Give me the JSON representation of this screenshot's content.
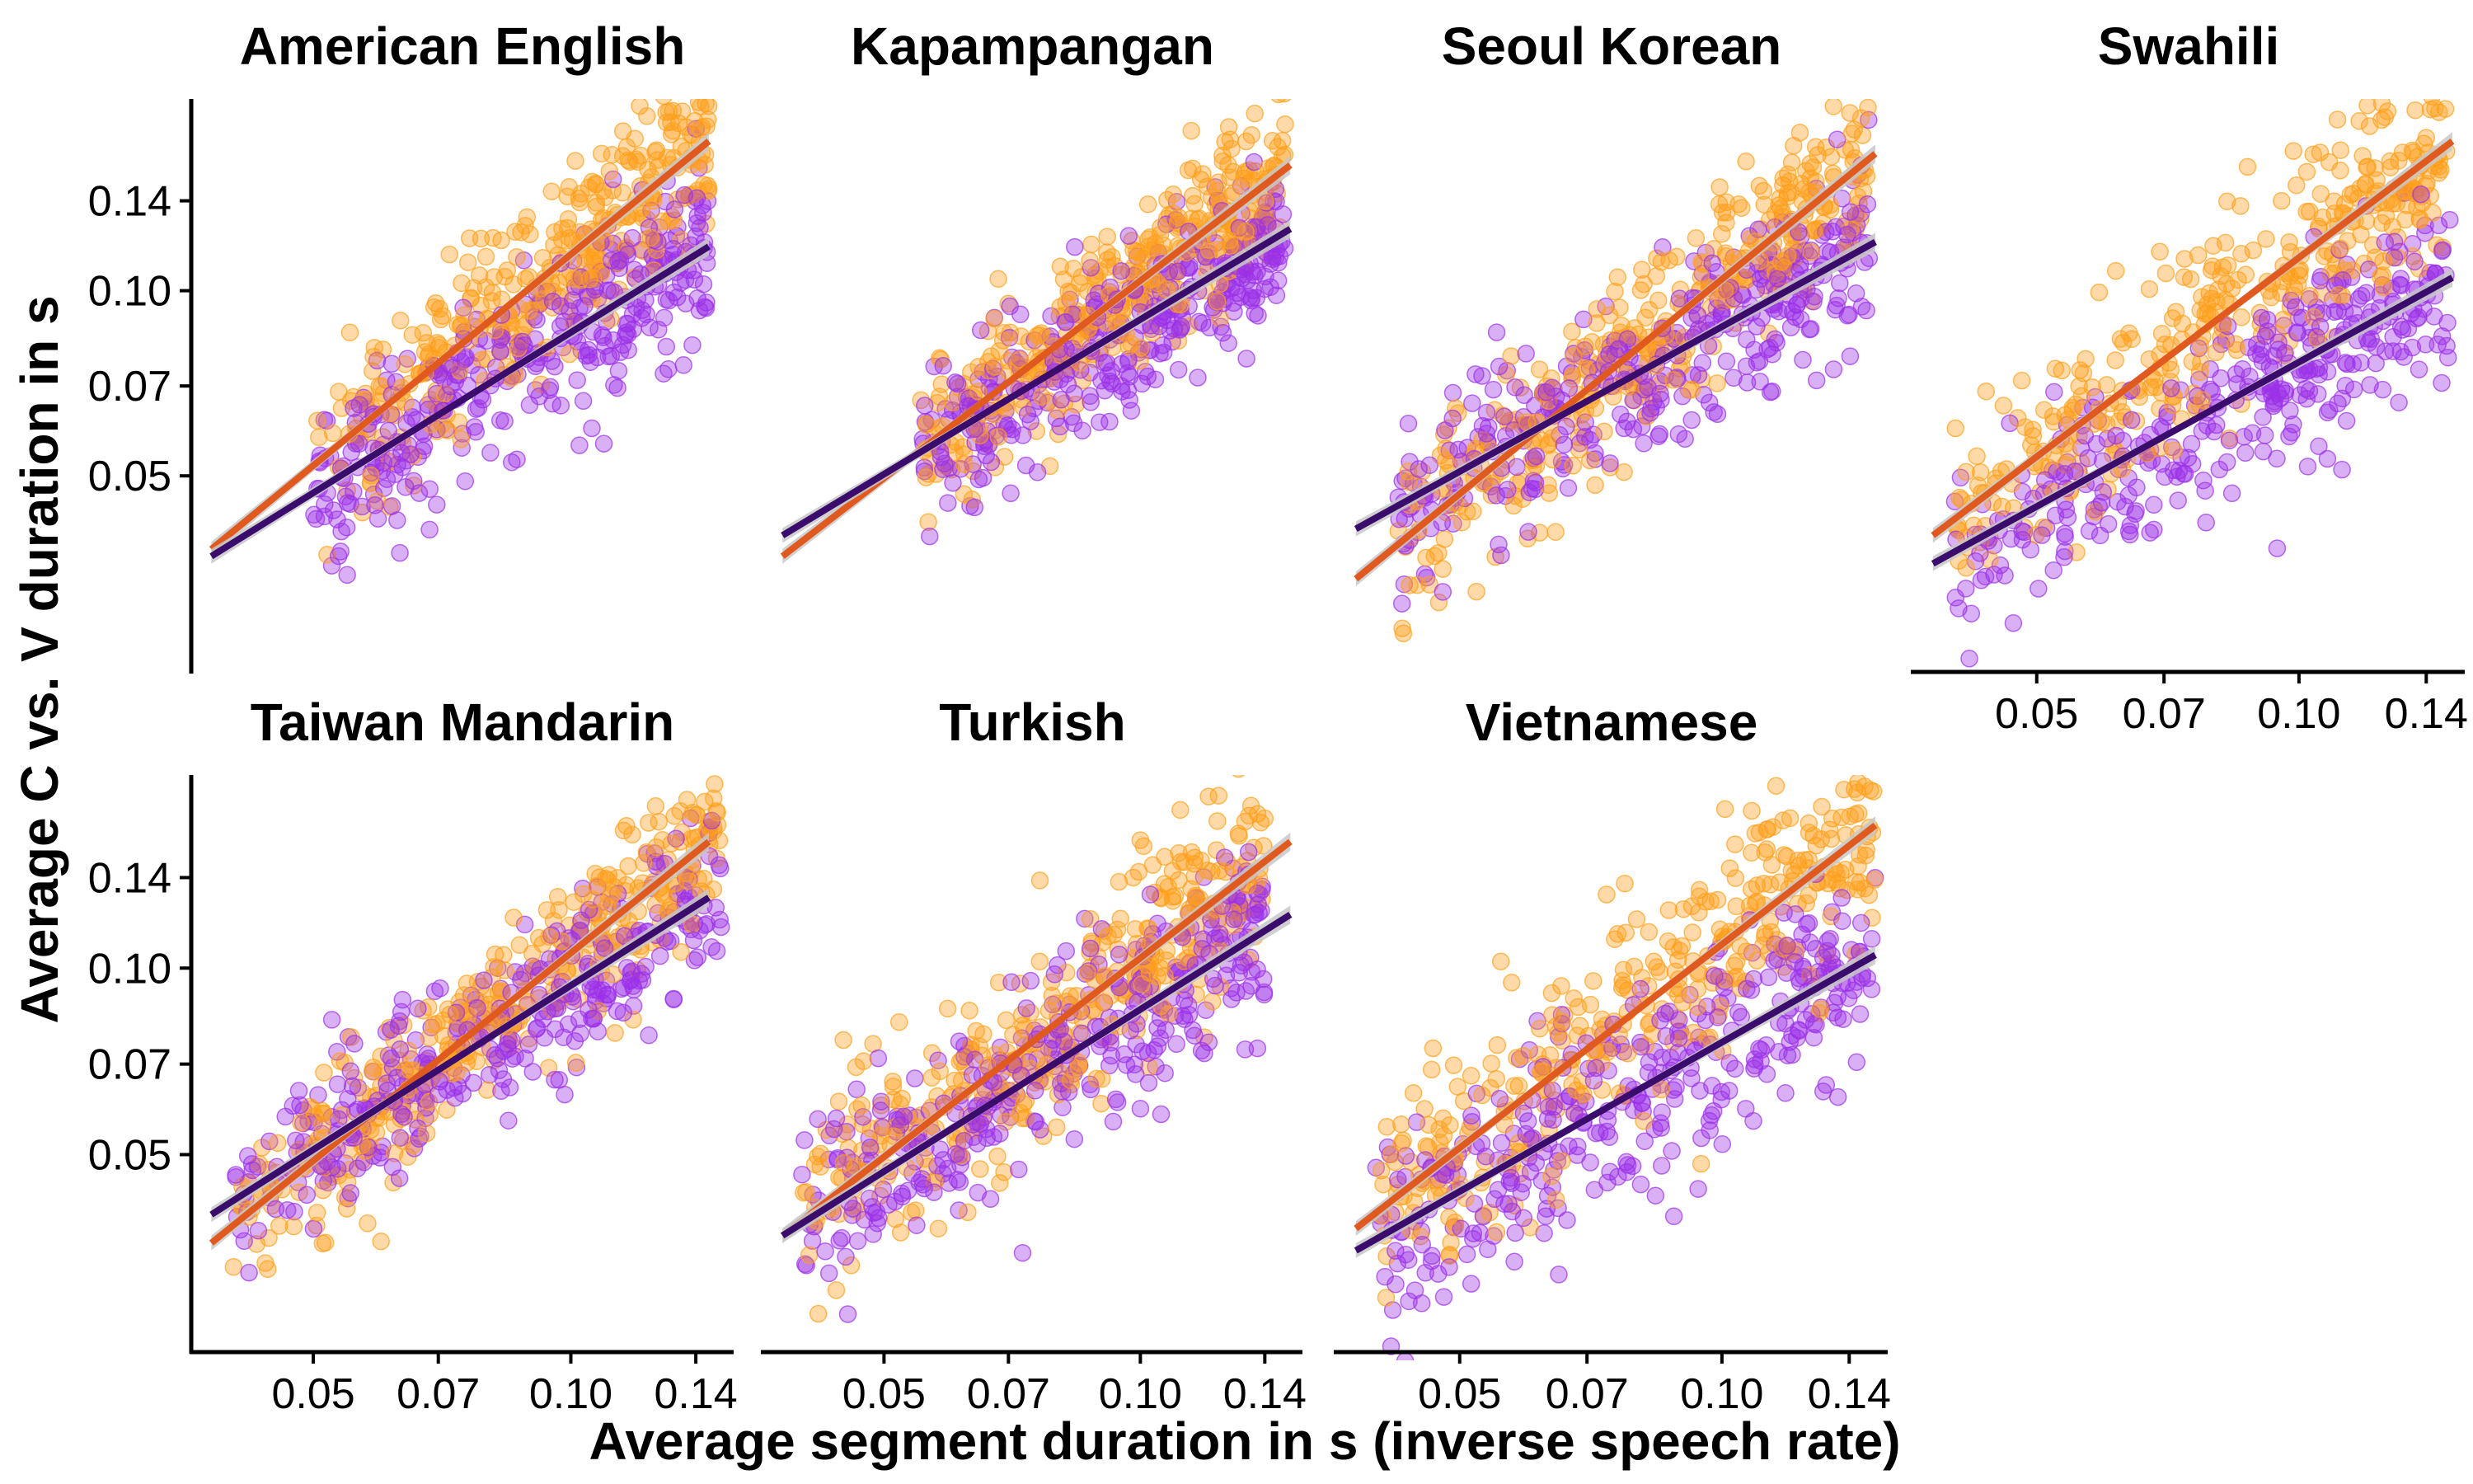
{
  "chart_data": {
    "type": "scatter",
    "xlabel": "Average segment duration in s (inverse speech rate)",
    "ylabel": "Average C vs. V duration in s",
    "xscale": "log",
    "yscale": "log",
    "xlim": [
      0.036,
      0.155
    ],
    "ylim": [
      0.024,
      0.205
    ],
    "x_ticks": [
      0.05,
      0.07,
      0.1,
      0.14
    ],
    "x_tick_labels": [
      "0.05",
      "0.07",
      "0.10",
      "0.14"
    ],
    "y_ticks": [
      0.05,
      0.07,
      0.1,
      0.14
    ],
    "y_tick_labels": [
      "0.05",
      "0.07",
      "0.10",
      "0.14"
    ],
    "grid": false,
    "legend": "none",
    "colors": {
      "consonant_points": "#ff9f1a",
      "vowel_points": "#9b30e8",
      "consonant_line": "#e0591e",
      "vowel_line": "#3a0c6b",
      "ribbon": "#c8c8c8"
    },
    "panels": [
      {
        "title": "American English",
        "orange": {
          "x": [
            0.038,
            0.145
          ],
          "y": [
            0.038,
            0.175
          ]
        },
        "purple": {
          "x": [
            0.038,
            0.145
          ],
          "y": [
            0.037,
            0.118
          ]
        },
        "orange_x_range": [
          0.05,
          0.15
        ],
        "purple_x_range": [
          0.05,
          0.145
        ],
        "cloud_x": [
          0.05,
          0.145
        ],
        "spread": 0.17
      },
      {
        "title": "Kapampangan",
        "orange": {
          "x": [
            0.038,
            0.15
          ],
          "y": [
            0.037,
            0.16
          ]
        },
        "purple": {
          "x": [
            0.038,
            0.15
          ],
          "y": [
            0.04,
            0.126
          ]
        },
        "orange_x_range": [
          0.05,
          0.15
        ],
        "purple_x_range": [
          0.05,
          0.145
        ],
        "cloud_x": [
          0.055,
          0.148
        ],
        "spread": 0.15
      },
      {
        "title": "Seoul Korean",
        "orange": {
          "x": [
            0.038,
            0.15
          ],
          "y": [
            0.034,
            0.167
          ]
        },
        "purple": {
          "x": [
            0.038,
            0.15
          ],
          "y": [
            0.041,
            0.12
          ]
        },
        "orange_x_range": [
          0.045,
          0.15
        ],
        "purple_x_range": [
          0.045,
          0.145
        ],
        "cloud_x": [
          0.042,
          0.148
        ],
        "spread": 0.17
      },
      {
        "title": "Swahili",
        "orange": {
          "x": [
            0.038,
            0.15
          ],
          "y": [
            0.04,
            0.175
          ]
        },
        "purple": {
          "x": [
            0.038,
            0.15
          ],
          "y": [
            0.036,
            0.105
          ]
        },
        "orange_x_range": [
          0.04,
          0.15
        ],
        "purple_x_range": [
          0.04,
          0.15
        ],
        "cloud_x": [
          0.04,
          0.15
        ],
        "spread": 0.18
      },
      {
        "title": "Taiwan Mandarin",
        "orange": {
          "x": [
            0.038,
            0.145
          ],
          "y": [
            0.036,
            0.16
          ]
        },
        "purple": {
          "x": [
            0.038,
            0.145
          ],
          "y": [
            0.04,
            0.13
          ]
        },
        "orange_x_range": [
          0.04,
          0.15
        ],
        "purple_x_range": [
          0.04,
          0.15
        ],
        "cloud_x": [
          0.04,
          0.15
        ],
        "spread": 0.15
      },
      {
        "title": "Turkish",
        "orange": {
          "x": [
            0.038,
            0.15
          ],
          "y": [
            0.037,
            0.16
          ]
        },
        "purple": {
          "x": [
            0.038,
            0.15
          ],
          "y": [
            0.037,
            0.122
          ]
        },
        "orange_x_range": [
          0.04,
          0.15
        ],
        "purple_x_range": [
          0.04,
          0.15
        ],
        "cloud_x": [
          0.04,
          0.14
        ],
        "spread": 0.18
      },
      {
        "title": "Vietnamese",
        "orange": {
          "x": [
            0.038,
            0.15
          ],
          "y": [
            0.038,
            0.17
          ]
        },
        "purple": {
          "x": [
            0.038,
            0.15
          ],
          "y": [
            0.035,
            0.105
          ]
        },
        "orange_x_range": [
          0.04,
          0.15
        ],
        "purple_x_range": [
          0.04,
          0.15
        ],
        "cloud_x": [
          0.04,
          0.15
        ],
        "spread": 0.2
      }
    ]
  }
}
